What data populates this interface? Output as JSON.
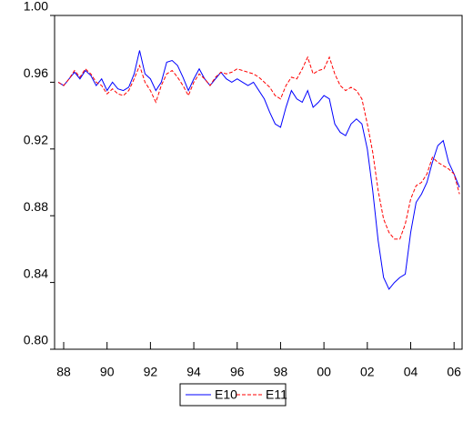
{
  "chart_data": {
    "type": "line",
    "x": [
      1987.75,
      1988,
      1988.25,
      1988.5,
      1988.75,
      1989,
      1989.25,
      1989.5,
      1989.75,
      1990,
      1990.25,
      1990.5,
      1990.75,
      1991,
      1991.25,
      1991.5,
      1991.75,
      1992,
      1992.25,
      1992.5,
      1992.75,
      1993,
      1993.25,
      1993.5,
      1993.75,
      1994,
      1994.25,
      1994.5,
      1994.75,
      1995,
      1995.25,
      1995.5,
      1995.75,
      1996,
      1996.25,
      1996.5,
      1996.75,
      1997,
      1997.25,
      1997.5,
      1997.75,
      1998,
      1998.25,
      1998.5,
      1998.75,
      1999,
      1999.25,
      1999.5,
      1999.75,
      2000,
      2000.25,
      2000.5,
      2000.75,
      2001,
      2001.25,
      2001.5,
      2001.75,
      2002,
      2002.25,
      2002.5,
      2002.75,
      2003,
      2003.25,
      2003.5,
      2003.75,
      2004,
      2004.25,
      2004.5,
      2004.75,
      2005,
      2005.25,
      2005.5,
      2005.75,
      2006,
      2006.25
    ],
    "series": [
      {
        "name": "E10",
        "color": "#0000ff",
        "dash": "solid",
        "values": [
          0.96,
          0.958,
          0.962,
          0.966,
          0.962,
          0.967,
          0.964,
          0.958,
          0.962,
          0.955,
          0.96,
          0.956,
          0.955,
          0.957,
          0.965,
          0.979,
          0.965,
          0.962,
          0.955,
          0.96,
          0.972,
          0.973,
          0.97,
          0.963,
          0.955,
          0.962,
          0.968,
          0.962,
          0.958,
          0.962,
          0.966,
          0.962,
          0.96,
          0.962,
          0.96,
          0.958,
          0.96,
          0.955,
          0.95,
          0.942,
          0.935,
          0.933,
          0.945,
          0.955,
          0.95,
          0.948,
          0.955,
          0.945,
          0.948,
          0.952,
          0.95,
          0.935,
          0.93,
          0.928,
          0.935,
          0.938,
          0.935,
          0.92,
          0.895,
          0.865,
          0.843,
          0.836,
          0.84,
          0.843,
          0.845,
          0.87,
          0.888,
          0.893,
          0.9,
          0.912,
          0.922,
          0.925,
          0.912,
          0.905,
          0.897
        ]
      },
      {
        "name": "E11",
        "color": "#ff0000",
        "dash": "dashed",
        "values": [
          0.96,
          0.958,
          0.962,
          0.967,
          0.963,
          0.968,
          0.965,
          0.96,
          0.958,
          0.953,
          0.956,
          0.953,
          0.952,
          0.955,
          0.962,
          0.97,
          0.96,
          0.955,
          0.948,
          0.958,
          0.965,
          0.967,
          0.963,
          0.958,
          0.952,
          0.96,
          0.965,
          0.962,
          0.958,
          0.963,
          0.966,
          0.965,
          0.966,
          0.968,
          0.967,
          0.966,
          0.965,
          0.963,
          0.96,
          0.957,
          0.952,
          0.95,
          0.958,
          0.963,
          0.962,
          0.968,
          0.975,
          0.965,
          0.967,
          0.968,
          0.975,
          0.965,
          0.958,
          0.955,
          0.957,
          0.955,
          0.95,
          0.935,
          0.918,
          0.895,
          0.878,
          0.87,
          0.866,
          0.866,
          0.875,
          0.89,
          0.898,
          0.9,
          0.905,
          0.915,
          0.912,
          0.91,
          0.908,
          0.905,
          0.893
        ]
      }
    ],
    "xlim": [
      1987.58,
      2006.37
    ],
    "xticks": [
      {
        "value": 1988,
        "label": "88"
      },
      {
        "value": 1990,
        "label": "90"
      },
      {
        "value": 1992,
        "label": "92"
      },
      {
        "value": 1994,
        "label": "94"
      },
      {
        "value": 1996,
        "label": "96"
      },
      {
        "value": 1998,
        "label": "98"
      },
      {
        "value": 2000,
        "label": "00"
      },
      {
        "value": 2002,
        "label": "02"
      },
      {
        "value": 2004,
        "label": "04"
      },
      {
        "value": 2006,
        "label": "06"
      }
    ],
    "ylim": [
      0.8,
      1.0
    ],
    "yticks": [
      {
        "value": 0.8,
        "label": "0.80"
      },
      0.84,
      0.88,
      0.92,
      0.96,
      {
        "value": 1.0,
        "label": "1.00"
      }
    ],
    "grid": false,
    "legend": "bottom"
  }
}
